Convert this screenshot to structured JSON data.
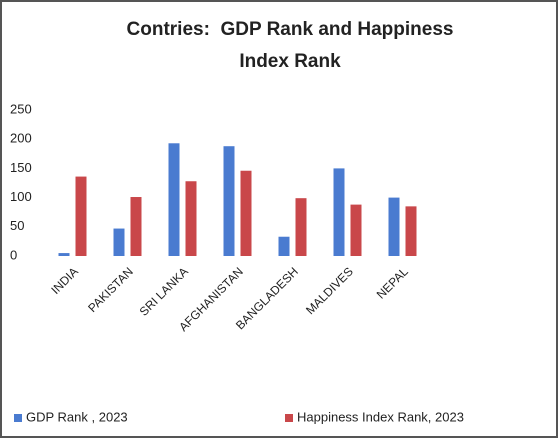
{
  "chart_data": {
    "type": "bar",
    "title": [
      "Contries:  GDP Rank and Happiness",
      "Index Rank"
    ],
    "categories": [
      "INDIA",
      "PAKISTAN",
      "SRI LANKA",
      "AFGHANISTAN",
      "BANGLADESH",
      "MALDIVES",
      "NEPAL"
    ],
    "series": [
      {
        "name": "GDP Rank , 2023",
        "color": "#4a7bd0",
        "values": [
          5,
          47,
          193,
          188,
          33,
          150,
          100
        ]
      },
      {
        "name": "Happiness Index Rank, 2023",
        "color": "#c9474a",
        "values": [
          136,
          101,
          128,
          146,
          99,
          88,
          85
        ]
      }
    ],
    "ylim": [
      0,
      250
    ],
    "yticks": [
      0,
      50,
      100,
      150,
      200,
      250
    ],
    "grid": false,
    "legend": "bottom"
  }
}
